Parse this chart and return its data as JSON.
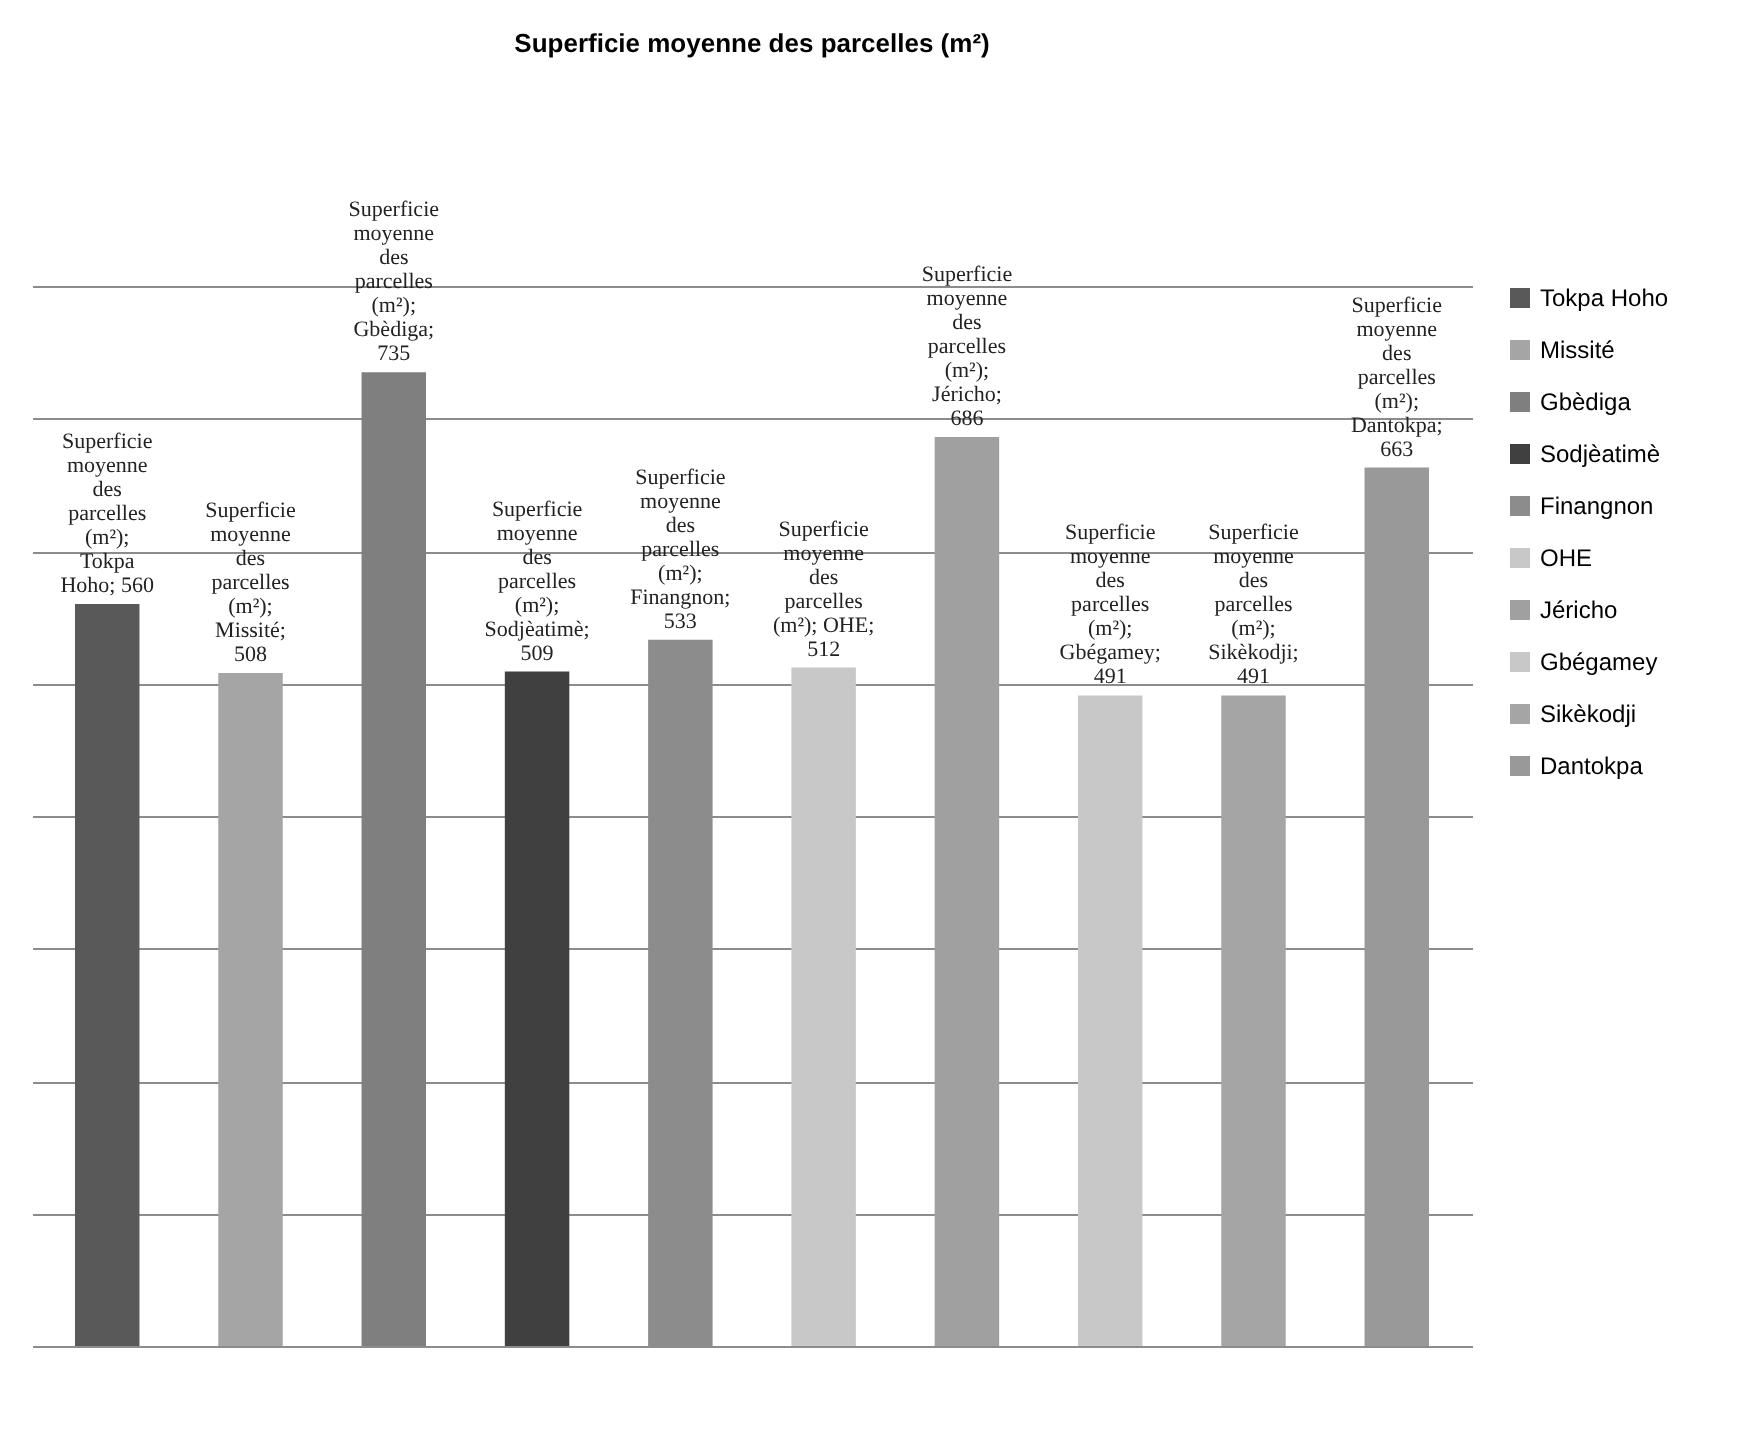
{
  "chart_data": {
    "type": "bar",
    "title": "Superficie moyenne des parcelles (m²)",
    "categories": [
      null,
      null,
      null,
      null,
      null,
      null,
      null,
      null,
      null,
      null
    ],
    "series": [
      {
        "name": "Tokpa Hoho",
        "color": "#595959",
        "values": [
          560,
          null,
          null,
          null,
          null,
          null,
          null,
          null,
          null,
          null
        ],
        "value_labels": [
          "Superficie moyenne des parcelles (m²); Tokpa Hoho; 560",
          null,
          null,
          null,
          null,
          null,
          null,
          null,
          null,
          null
        ]
      },
      {
        "name": "Missité",
        "color": "#a5a5a5",
        "values": [
          null,
          508,
          null,
          null,
          null,
          null,
          null,
          null,
          null,
          null
        ],
        "value_labels": [
          null,
          "Superficie moyenne des parcelles (m²); Missité; 508",
          null,
          null,
          null,
          null,
          null,
          null,
          null,
          null
        ]
      },
      {
        "name": "Gbèdiga",
        "color": "#7f7f7f",
        "values": [
          null,
          null,
          735,
          null,
          null,
          null,
          null,
          null,
          null,
          null
        ],
        "value_labels": [
          null,
          null,
          "Superficie moyenne des parcelles (m²); Gbèdiga; 735",
          null,
          null,
          null,
          null,
          null,
          null,
          null
        ]
      },
      {
        "name": "Sodjèatimè",
        "color": "#404040",
        "values": [
          null,
          null,
          null,
          509,
          null,
          null,
          null,
          null,
          null,
          null
        ],
        "value_labels": [
          null,
          null,
          null,
          "Superficie moyenne des parcelles (m²); Sodjèatimè; 509",
          null,
          null,
          null,
          null,
          null,
          null
        ]
      },
      {
        "name": "Finangnon",
        "color": "#8c8c8c",
        "values": [
          null,
          null,
          null,
          null,
          533,
          null,
          null,
          null,
          null,
          null
        ],
        "value_labels": [
          null,
          null,
          null,
          null,
          "Superficie moyenne des parcelles (m²); Finangnon; 533",
          null,
          null,
          null,
          null,
          null
        ]
      },
      {
        "name": "OHE",
        "color": "#c8c8c8",
        "values": [
          null,
          null,
          null,
          null,
          null,
          512,
          null,
          null,
          null,
          null
        ],
        "value_labels": [
          null,
          null,
          null,
          null,
          null,
          "Superficie moyenne des parcelles (m²); OHE; 512",
          null,
          null,
          null,
          null
        ]
      },
      {
        "name": "Jéricho",
        "color": "#a0a0a0",
        "values": [
          null,
          null,
          null,
          null,
          null,
          null,
          686,
          null,
          null,
          null
        ],
        "value_labels": [
          null,
          null,
          null,
          null,
          null,
          null,
          "Superficie moyenne des parcelles (m²); Jéricho; 686",
          null,
          null,
          null
        ]
      },
      {
        "name": "Gbégamey",
        "color": "#c8c8c8",
        "values": [
          null,
          null,
          null,
          null,
          null,
          null,
          null,
          491,
          null,
          null
        ],
        "value_labels": [
          null,
          null,
          null,
          null,
          null,
          null,
          null,
          "Superficie moyenne des parcelles (m²); Gbégamey; 491",
          null,
          null
        ]
      },
      {
        "name": "Sikèkodji",
        "color": "#a5a5a5",
        "values": [
          null,
          null,
          null,
          null,
          null,
          null,
          null,
          null,
          491,
          null
        ],
        "value_labels": [
          null,
          null,
          null,
          null,
          null,
          null,
          null,
          null,
          "Superficie moyenne des parcelles (m²); Sikèkodji; 491",
          null
        ]
      },
      {
        "name": "Dantokpa",
        "color": "#999999",
        "values": [
          null,
          null,
          null,
          null,
          null,
          null,
          null,
          null,
          null,
          663
        ],
        "value_labels": [
          null,
          null,
          null,
          null,
          null,
          null,
          null,
          null,
          null,
          "Superficie moyenne des parcelles (m²); Dantokpa; 663"
        ]
      }
    ],
    "ylim": [
      0,
      800
    ],
    "yticks": [
      0,
      100,
      200,
      300,
      400,
      500,
      600,
      700,
      800
    ],
    "grid": "y",
    "legend": "right",
    "tick_labels": false,
    "stacked": true
  }
}
